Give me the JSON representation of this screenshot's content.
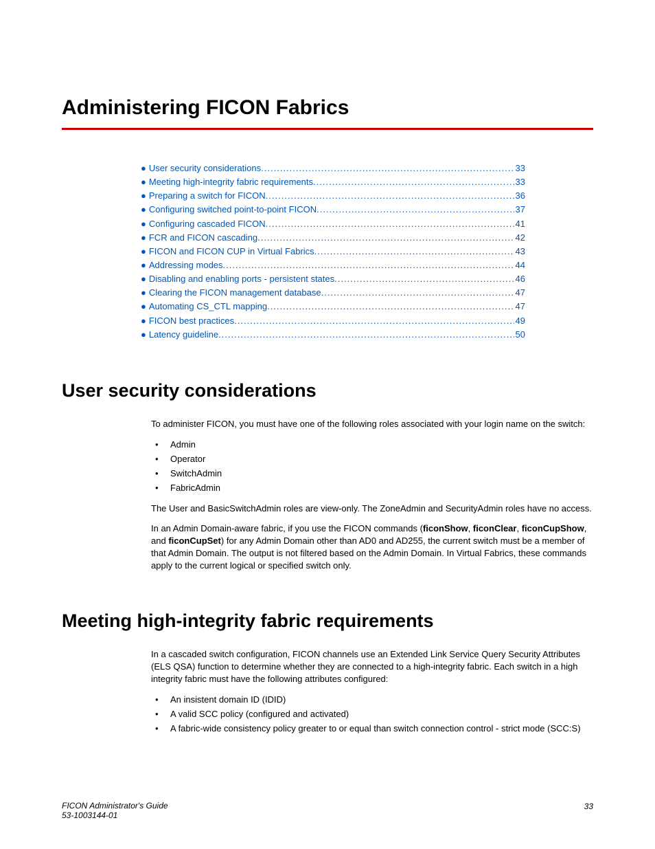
{
  "colors": {
    "rule": "#cc0000",
    "link": "#0057b8",
    "text": "#000000",
    "background": "#ffffff"
  },
  "typography": {
    "chapter_title_size_pt": 30,
    "section_title_size_pt": 27,
    "body_size_pt": 13,
    "toc_size_pt": 13,
    "footer_size_pt": 12,
    "heading_family": "Arial Narrow",
    "body_family": "Arial"
  },
  "chapter_title": "Administering FICON Fabrics",
  "toc": [
    {
      "label": "User security considerations",
      "page": "33"
    },
    {
      "label": "Meeting high-integrity fabric requirements",
      "page": "33"
    },
    {
      "label": "Preparing a switch for FICON",
      "page": "36"
    },
    {
      "label": "Configuring switched point-to-point FICON",
      "page": "37"
    },
    {
      "label": "Configuring cascaded FICON",
      "page": "41"
    },
    {
      "label": "FCR and FICON cascading",
      "page": "42"
    },
    {
      "label": "FICON and FICON CUP in Virtual Fabrics",
      "page": "43"
    },
    {
      "label": "Addressing modes",
      "page": "44"
    },
    {
      "label": "Disabling and enabling ports - persistent states",
      "page": "46"
    },
    {
      "label": "Clearing the FICON management database",
      "page": "47"
    },
    {
      "label": "Automating CS_CTL mapping",
      "page": "47"
    },
    {
      "label": "FICON best practices",
      "page": "49"
    },
    {
      "label": "Latency guideline",
      "page": "50"
    }
  ],
  "sections": {
    "user_security": {
      "title": "User security considerations",
      "intro": "To administer FICON, you must have one of the following roles associated with your login name on the switch:",
      "roles": [
        "Admin",
        "Operator",
        "SwitchAdmin",
        "FabricAdmin"
      ],
      "para2": "The User and BasicSwitchAdmin roles are view-only. The ZoneAdmin and SecurityAdmin roles have no access.",
      "para3_pre": "In an Admin Domain-aware fabric, if you use the FICON commands (",
      "cmds": {
        "c1": "ficonShow",
        "c2": "ficonClear",
        "c3": "ficonCupShow",
        "c4": "ficonCupSet"
      },
      "comma_sp": ", ",
      "and_sp": ", and ",
      "para3_post": ") for any Admin Domain other than AD0 and AD255, the current switch must be a member of that Admin Domain. The output is not filtered based on the Admin Domain. In Virtual Fabrics, these commands apply to the current logical or specified switch only."
    },
    "high_integrity": {
      "title": "Meeting high-integrity fabric requirements",
      "intro": "In a cascaded switch configuration, FICON channels use an Extended Link Service Query Security Attributes (ELS QSA) function to determine whether they are connected to a high-integrity fabric. Each switch in a high integrity fabric must have the following attributes configured:",
      "items": [
        "An insistent domain ID (IDID)",
        "A valid SCC policy (configured and activated)",
        "A fabric-wide consistency policy greater to or equal than switch connection control - strict mode (SCC:S)"
      ]
    }
  },
  "footer": {
    "line1": "FICON Administrator's Guide",
    "line2": "53-1003144-01",
    "page": "33"
  }
}
